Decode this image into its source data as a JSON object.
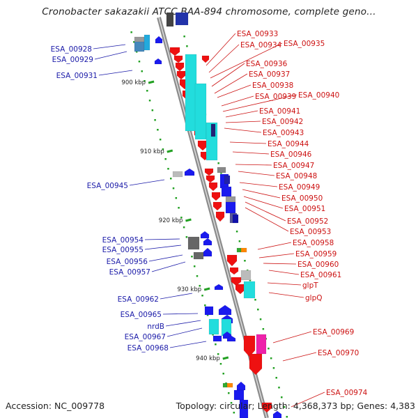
{
  "title": "Cronobacter sakazakii ATCC BAA-894 chromosome, complete geno...",
  "footer": {
    "accession": "Accession: NC_009778",
    "summary": "Topology: circular; Length: 4,368,373 bp; Genes: 4,383"
  },
  "colors": {
    "left_label": "#1a1aa8",
    "right_label": "#cc1111",
    "axis": "#999999",
    "tick": "#22a022",
    "gene_red": "#ee1111",
    "gene_blue": "#1a1aee",
    "gene_cyan": "#22dddd",
    "gene_gray": "#666666",
    "gene_magenta": "#ee22aa",
    "gene_green": "#33aa33",
    "gene_orange": "#ff8800"
  },
  "kbp_ticks": [
    "900 kbp",
    "910 kbp",
    "920 kbp",
    "930 kbp",
    "940 kbp"
  ],
  "left_labels": [
    "ESA_00928",
    "ESA_00929",
    "ESA_00931",
    "ESA_00945",
    "ESA_00954",
    "ESA_00955",
    "ESA_00956",
    "ESA_00957",
    "ESA_00962",
    "ESA_00965",
    "nrdB",
    "ESA_00967",
    "ESA_00968"
  ],
  "right_labels": [
    "ESA_00933",
    "ESA_00934",
    "ESA_00935",
    "ESA_00936",
    "ESA_00937",
    "ESA_00938",
    "ESA_00939",
    "ESA_00940",
    "ESA_00941",
    "ESA_00942",
    "ESA_00943",
    "ESA_00944",
    "ESA_00946",
    "ESA_00947",
    "ESA_00948",
    "ESA_00949",
    "ESA_00950",
    "ESA_00951",
    "ESA_00952",
    "ESA_00953",
    "ESA_00958",
    "ESA_00959",
    "ESA_00960",
    "ESA_00961",
    "glpT",
    "glpQ",
    "ESA_00969",
    "ESA_00970",
    "ESA_00974"
  ]
}
